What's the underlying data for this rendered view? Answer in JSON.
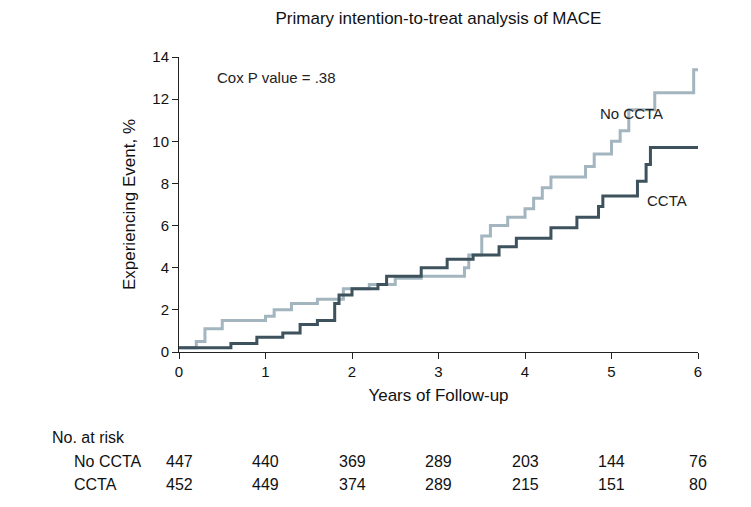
{
  "chart_data": {
    "type": "line",
    "title": "Primary intention-to-treat analysis of MACE",
    "x_label": "Years of Follow-up",
    "y_label": "Experiencing Event, %",
    "xlim": [
      0,
      6
    ],
    "ylim": [
      0,
      14
    ],
    "xticks": [
      0,
      1,
      2,
      3,
      4,
      5,
      6
    ],
    "yticks": [
      0,
      2,
      4,
      6,
      8,
      10,
      12,
      14
    ],
    "grid": false,
    "line_style": "step",
    "annotations": [
      "Cox P value = .38"
    ],
    "series": [
      {
        "name": "No CCTA",
        "color": "#a3b5be",
        "x": [
          0,
          0.2,
          0.3,
          0.5,
          1.0,
          1.1,
          1.3,
          1.6,
          1.9,
          2.2,
          2.5,
          2.8,
          3.3,
          3.35,
          3.5,
          3.6,
          3.8,
          4.0,
          4.1,
          4.2,
          4.3,
          4.7,
          4.8,
          5.0,
          5.1,
          5.2,
          5.5,
          5.95,
          6.0
        ],
        "values": [
          0.2,
          0.5,
          1.1,
          1.5,
          1.7,
          2.0,
          2.3,
          2.5,
          3.0,
          3.2,
          3.5,
          3.6,
          4.0,
          4.6,
          5.5,
          6.0,
          6.4,
          6.8,
          7.3,
          7.8,
          8.3,
          8.8,
          9.4,
          10.0,
          10.5,
          11.5,
          12.3,
          13.4,
          13.4
        ]
      },
      {
        "name": "CCTA",
        "color": "#3d525c",
        "x": [
          0,
          0.6,
          0.9,
          1.2,
          1.4,
          1.6,
          1.8,
          1.85,
          2.0,
          2.3,
          2.4,
          2.8,
          3.1,
          3.4,
          3.7,
          3.9,
          4.3,
          4.6,
          4.85,
          4.9,
          5.3,
          5.4,
          5.45,
          6.0
        ],
        "values": [
          0.2,
          0.4,
          0.7,
          0.9,
          1.3,
          1.5,
          2.3,
          2.7,
          3.0,
          3.2,
          3.6,
          4.0,
          4.4,
          4.6,
          5.0,
          5.4,
          5.9,
          6.4,
          6.9,
          7.4,
          8.1,
          8.9,
          9.7,
          9.7
        ]
      }
    ],
    "risk_table": {
      "title": "No. at risk",
      "rows": [
        {
          "name": "No CCTA",
          "values": [
            447,
            440,
            369,
            289,
            203,
            144,
            76
          ]
        },
        {
          "name": "CCTA",
          "values": [
            452,
            449,
            374,
            289,
            215,
            151,
            80
          ]
        }
      ]
    }
  }
}
